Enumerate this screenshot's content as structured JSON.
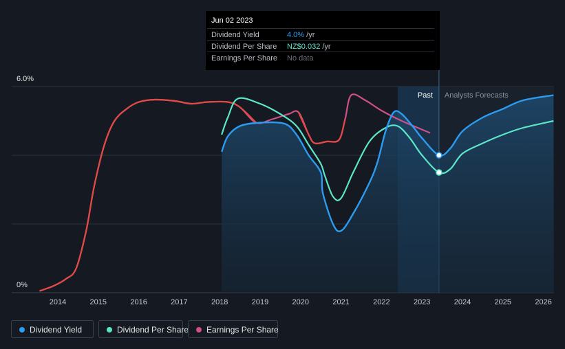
{
  "chart_data": {
    "type": "line",
    "y_axis": {
      "min": 0,
      "max": 6.0,
      "tick_labels": [
        "6.0%",
        "0%"
      ],
      "grid": true
    },
    "x_axis": {
      "tick_labels": [
        "2014",
        "2015",
        "2016",
        "2017",
        "2018",
        "2019",
        "2020",
        "2021",
        "2022",
        "2023",
        "2024",
        "2025",
        "2026"
      ]
    },
    "sections": {
      "past_label": "Past",
      "forecast_label": "Analysts Forecasts"
    },
    "series": [
      {
        "name": "Dividend Yield",
        "color": "#2d9cf0",
        "points": [
          [
            2018.05,
            4.1
          ],
          [
            2018.2,
            4.55
          ],
          [
            2018.5,
            4.85
          ],
          [
            2019.0,
            4.95
          ],
          [
            2019.6,
            4.92
          ],
          [
            2019.9,
            4.6
          ],
          [
            2020.2,
            4.0
          ],
          [
            2020.5,
            3.5
          ],
          [
            2020.55,
            2.9
          ],
          [
            2020.8,
            2.0
          ],
          [
            2021.0,
            1.8
          ],
          [
            2021.3,
            2.3
          ],
          [
            2021.7,
            3.2
          ],
          [
            2021.9,
            3.8
          ],
          [
            2022.1,
            4.7
          ],
          [
            2022.3,
            5.25
          ],
          [
            2022.5,
            5.2
          ],
          [
            2022.8,
            4.8
          ],
          [
            2023.0,
            4.5
          ],
          [
            2023.42,
            4.0
          ],
          [
            2023.7,
            4.2
          ],
          [
            2024.0,
            4.7
          ],
          [
            2024.5,
            5.1
          ],
          [
            2025.0,
            5.35
          ],
          [
            2025.5,
            5.6
          ],
          [
            2026.25,
            5.75
          ]
        ]
      },
      {
        "name": "Dividend Per Share",
        "color": "#5ce6c8",
        "points": [
          [
            2018.05,
            4.6
          ],
          [
            2018.2,
            5.1
          ],
          [
            2018.45,
            5.65
          ],
          [
            2019.0,
            5.5
          ],
          [
            2019.5,
            5.2
          ],
          [
            2019.9,
            4.85
          ],
          [
            2020.2,
            4.3
          ],
          [
            2020.5,
            3.75
          ],
          [
            2020.6,
            3.4
          ],
          [
            2020.8,
            2.8
          ],
          [
            2021.0,
            2.75
          ],
          [
            2021.3,
            3.5
          ],
          [
            2021.7,
            4.4
          ],
          [
            2022.1,
            4.8
          ],
          [
            2022.4,
            4.85
          ],
          [
            2022.7,
            4.5
          ],
          [
            2023.0,
            4.0
          ],
          [
            2023.42,
            3.5
          ],
          [
            2023.7,
            3.6
          ],
          [
            2024.0,
            4.05
          ],
          [
            2024.5,
            4.35
          ],
          [
            2025.0,
            4.6
          ],
          [
            2025.5,
            4.8
          ],
          [
            2026.25,
            5.0
          ]
        ]
      },
      {
        "name": "Earnings Per Share",
        "color": "#d04f87",
        "segments_before_color": "#e04a45",
        "points": [
          [
            2013.55,
            0.05
          ],
          [
            2013.9,
            0.2
          ],
          [
            2014.2,
            0.4
          ],
          [
            2014.45,
            0.7
          ],
          [
            2014.7,
            1.8
          ],
          [
            2014.9,
            3.1
          ],
          [
            2015.15,
            4.3
          ],
          [
            2015.4,
            5.0
          ],
          [
            2015.7,
            5.35
          ],
          [
            2016.0,
            5.55
          ],
          [
            2016.4,
            5.62
          ],
          [
            2016.9,
            5.58
          ],
          [
            2017.3,
            5.5
          ],
          [
            2017.7,
            5.55
          ],
          [
            2018.2,
            5.55
          ],
          [
            2018.5,
            5.4
          ],
          [
            2018.9,
            4.95
          ],
          [
            2019.3,
            5.05
          ],
          [
            2019.7,
            5.2
          ],
          [
            2019.95,
            5.25
          ],
          [
            2020.2,
            4.6
          ],
          [
            2020.35,
            4.35
          ],
          [
            2020.65,
            4.4
          ],
          [
            2020.95,
            4.45
          ],
          [
            2021.1,
            5.05
          ],
          [
            2021.25,
            5.75
          ],
          [
            2021.6,
            5.6
          ],
          [
            2022.0,
            5.3
          ],
          [
            2022.5,
            5.0
          ],
          [
            2023.2,
            4.65
          ]
        ]
      }
    ],
    "highlight_date": 2023.42,
    "past_shade_start": 2022.4,
    "forecast_start": 2023.42
  },
  "tooltip": {
    "date": "Jun 02 2023",
    "rows": [
      {
        "label": "Dividend Yield",
        "value": "4.0%",
        "unit": " /yr"
      },
      {
        "label": "Dividend Per Share",
        "value": "NZ$0.032",
        "unit": " /yr"
      },
      {
        "label": "Earnings Per Share",
        "value": "No data",
        "unit": ""
      }
    ]
  },
  "legend": {
    "items": [
      {
        "label": "Dividend Yield",
        "color": "#2d9cf0"
      },
      {
        "label": "Dividend Per Share",
        "color": "#5ce6c8"
      },
      {
        "label": "Earnings Per Share",
        "color": "#d04f87"
      }
    ]
  }
}
